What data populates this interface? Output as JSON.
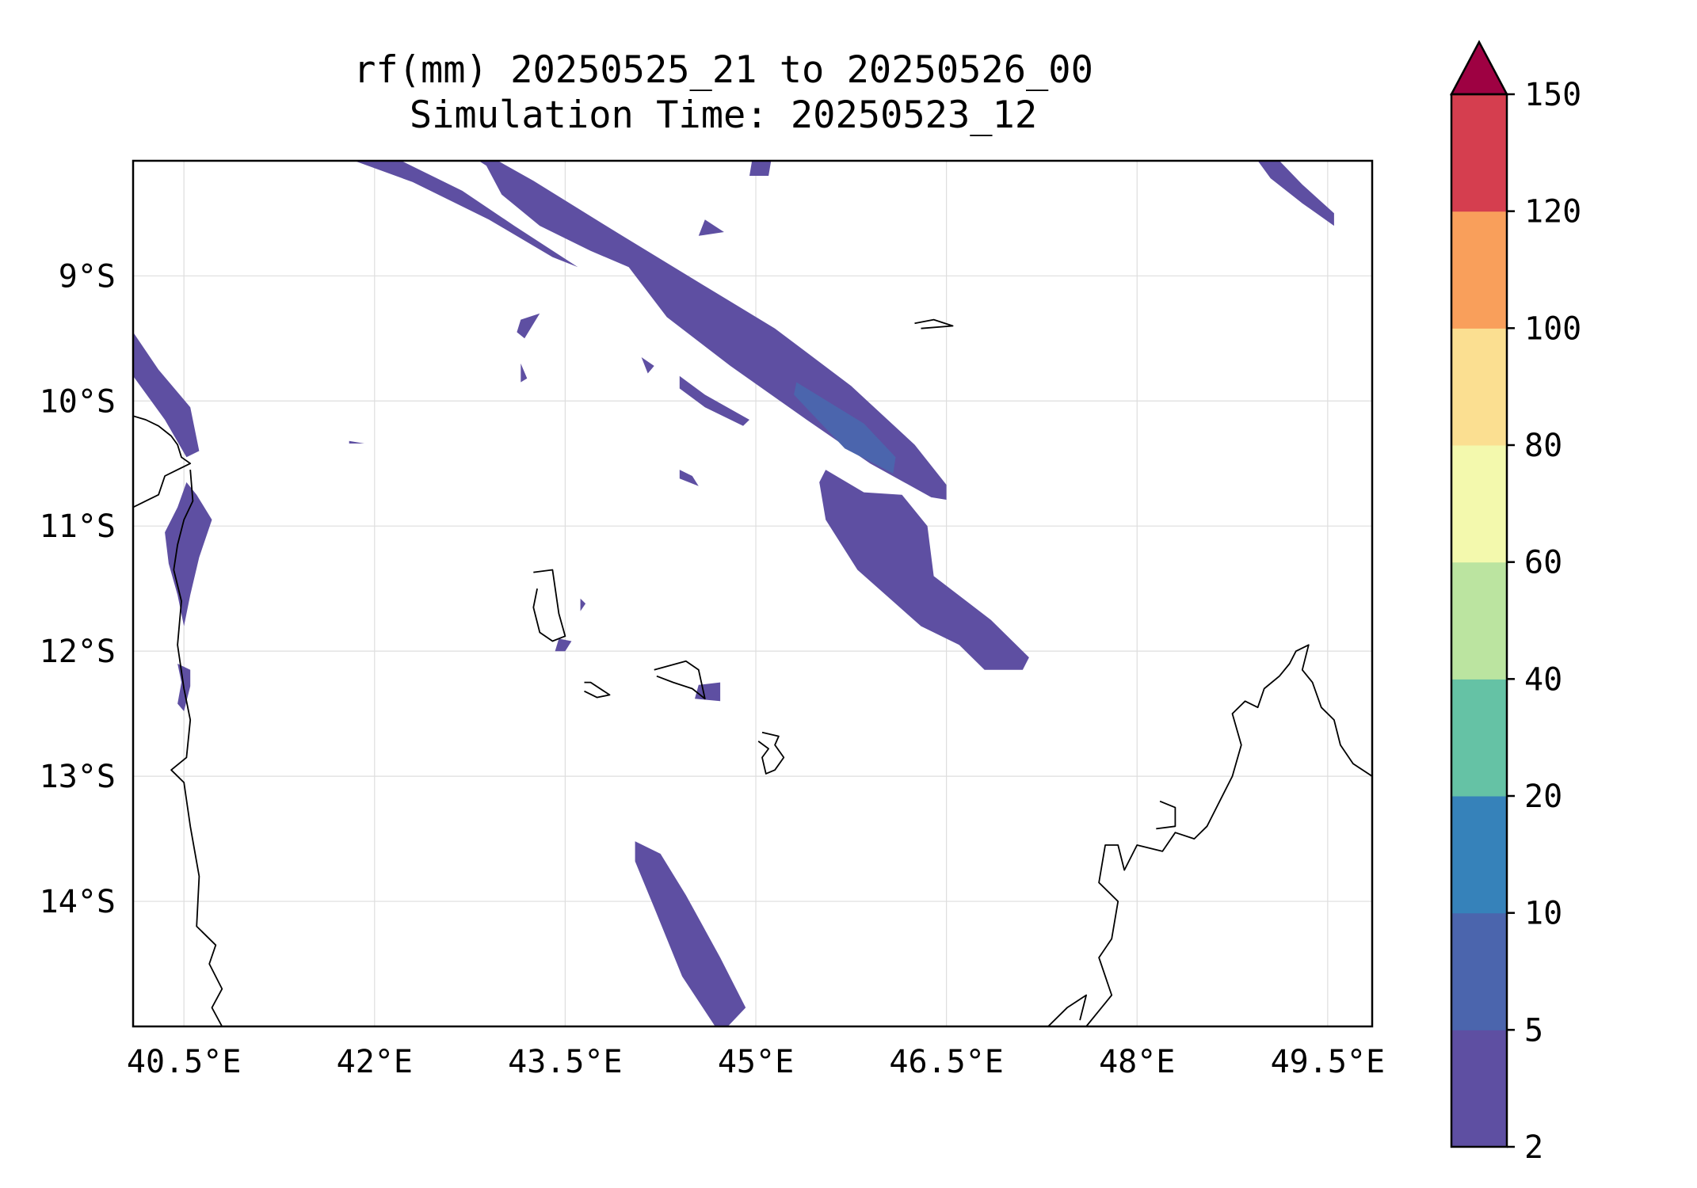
{
  "title_line1": "rf(mm) 20250525_21 to 20250526_00",
  "title_line2": "Simulation Time: 20250523_12",
  "map": {
    "lon_range": [
      40.1,
      49.85
    ],
    "lat_range": [
      -15.0,
      -8.08
    ],
    "grid": true,
    "lon_ticks": [
      40.5,
      42.0,
      43.5,
      45.0,
      46.5,
      48.0,
      49.5
    ],
    "lon_tick_labels": [
      "40.5°E",
      "42°E",
      "43.5°E",
      "45°E",
      "46.5°E",
      "48°E",
      "49.5°E"
    ],
    "lat_ticks": [
      -9,
      -10,
      -11,
      -12,
      -13,
      -14
    ],
    "lat_tick_labels": [
      "9°S",
      "10°S",
      "11°S",
      "12°S",
      "13°S",
      "14°S"
    ]
  },
  "colorbar": {
    "levels": [
      2,
      5,
      10,
      20,
      40,
      60,
      80,
      100,
      120,
      150
    ],
    "tick_labels": [
      "2",
      "5",
      "10",
      "20",
      "40",
      "60",
      "80",
      "100",
      "120",
      "150"
    ],
    "colors": [
      "#5e4fa2",
      "#4b65ad",
      "#3682ba",
      "#65c2a5",
      "#bbe4a0",
      "#f3f9ad",
      "#fbdf91",
      "#f99f5b",
      "#d53e4f"
    ],
    "extend_color": "#9e0142",
    "extend": "max"
  },
  "coastline_color": "#000000",
  "gridline_color": "#dedede",
  "rain_regions": [
    {
      "level": 0,
      "name": "nw-band",
      "pts": [
        [
          41.84,
          -8.08
        ],
        [
          42.21,
          -8.08
        ],
        [
          42.69,
          -8.32
        ],
        [
          43.1,
          -8.6
        ],
        [
          43.6,
          -8.93
        ],
        [
          43.4,
          -8.85
        ],
        [
          42.9,
          -8.55
        ],
        [
          42.3,
          -8.25
        ]
      ]
    },
    {
      "level": 0,
      "name": "main-band",
      "pts": [
        [
          42.82,
          -8.08
        ],
        [
          42.97,
          -8.08
        ],
        [
          43.25,
          -8.24
        ],
        [
          43.95,
          -8.68
        ],
        [
          44.5,
          -9.02
        ],
        [
          45.15,
          -9.42
        ],
        [
          45.75,
          -9.88
        ],
        [
          46.25,
          -10.35
        ],
        [
          46.5,
          -10.67
        ],
        [
          46.5,
          -10.79
        ],
        [
          46.38,
          -10.77
        ],
        [
          45.9,
          -10.5
        ],
        [
          45.4,
          -10.15
        ],
        [
          44.8,
          -9.72
        ],
        [
          44.3,
          -9.33
        ],
        [
          44.0,
          -8.93
        ],
        [
          43.7,
          -8.8
        ],
        [
          43.3,
          -8.6
        ],
        [
          43.0,
          -8.35
        ],
        [
          42.88,
          -8.12
        ]
      ]
    },
    {
      "level": 1,
      "name": "main-band-core",
      "pts": [
        [
          45.32,
          -9.85
        ],
        [
          45.85,
          -10.18
        ],
        [
          46.1,
          -10.45
        ],
        [
          46.08,
          -10.58
        ],
        [
          45.7,
          -10.38
        ],
        [
          45.3,
          -9.95
        ]
      ]
    },
    {
      "level": 0,
      "name": "south-band",
      "pts": [
        [
          45.55,
          -10.55
        ],
        [
          45.85,
          -10.73
        ],
        [
          46.15,
          -10.75
        ],
        [
          46.35,
          -11.0
        ],
        [
          46.4,
          -11.4
        ],
        [
          46.85,
          -11.75
        ],
        [
          47.15,
          -12.05
        ],
        [
          47.1,
          -12.15
        ],
        [
          46.8,
          -12.15
        ],
        [
          46.6,
          -11.95
        ],
        [
          46.3,
          -11.8
        ],
        [
          45.8,
          -11.35
        ],
        [
          45.55,
          -10.95
        ],
        [
          45.5,
          -10.65
        ]
      ]
    },
    {
      "level": 0,
      "name": "coast-strip-upper",
      "pts": [
        [
          40.1,
          -9.45
        ],
        [
          40.3,
          -9.75
        ],
        [
          40.55,
          -10.05
        ],
        [
          40.62,
          -10.4
        ],
        [
          40.52,
          -10.45
        ],
        [
          40.35,
          -10.15
        ],
        [
          40.1,
          -9.8
        ]
      ]
    },
    {
      "level": 0,
      "name": "coast-strip-mid",
      "pts": [
        [
          40.52,
          -10.65
        ],
        [
          40.6,
          -10.75
        ],
        [
          40.72,
          -10.95
        ],
        [
          40.62,
          -11.25
        ],
        [
          40.55,
          -11.55
        ],
        [
          40.5,
          -11.8
        ],
        [
          40.45,
          -11.55
        ],
        [
          40.38,
          -11.3
        ],
        [
          40.35,
          -11.05
        ],
        [
          40.45,
          -10.85
        ]
      ]
    },
    {
      "level": 0,
      "name": "coast-strip-low",
      "pts": [
        [
          40.45,
          -12.1
        ],
        [
          40.55,
          -12.15
        ],
        [
          40.55,
          -12.28
        ],
        [
          40.5,
          -12.48
        ],
        [
          40.45,
          -12.42
        ],
        [
          40.48,
          -12.25
        ]
      ]
    },
    {
      "level": 0,
      "name": "south-strip",
      "pts": [
        [
          44.05,
          -13.52
        ],
        [
          44.25,
          -13.62
        ],
        [
          44.45,
          -13.95
        ],
        [
          44.72,
          -14.45
        ],
        [
          44.92,
          -14.85
        ],
        [
          44.78,
          -15.0
        ],
        [
          44.68,
          -15.0
        ],
        [
          44.42,
          -14.6
        ],
        [
          44.2,
          -14.05
        ],
        [
          44.05,
          -13.68
        ]
      ]
    },
    {
      "level": 0,
      "name": "north-blob-1",
      "pts": [
        [
          44.97,
          -8.08
        ],
        [
          45.12,
          -8.08
        ],
        [
          45.1,
          -8.2
        ],
        [
          44.95,
          -8.2
        ]
      ]
    },
    {
      "level": 0,
      "name": "north-blob-2",
      "pts": [
        [
          44.6,
          -8.55
        ],
        [
          44.75,
          -8.65
        ],
        [
          44.55,
          -8.68
        ]
      ]
    },
    {
      "level": 0,
      "name": "east-streak",
      "pts": [
        [
          48.95,
          -8.08
        ],
        [
          49.12,
          -8.08
        ],
        [
          49.3,
          -8.27
        ],
        [
          49.55,
          -8.5
        ],
        [
          49.55,
          -8.6
        ],
        [
          49.3,
          -8.42
        ],
        [
          49.05,
          -8.22
        ]
      ]
    },
    {
      "level": 0,
      "name": "streak-mid",
      "pts": [
        [
          44.4,
          -9.8
        ],
        [
          44.6,
          -9.95
        ],
        [
          44.95,
          -10.15
        ],
        [
          44.9,
          -10.2
        ],
        [
          44.6,
          -10.05
        ],
        [
          44.4,
          -9.9
        ]
      ]
    },
    {
      "level": 0,
      "name": "blob-a",
      "pts": [
        [
          43.15,
          -9.35
        ],
        [
          43.3,
          -9.3
        ],
        [
          43.18,
          -9.5
        ],
        [
          43.12,
          -9.45
        ]
      ]
    },
    {
      "level": 0,
      "name": "blob-b",
      "pts": [
        [
          43.15,
          -9.7
        ],
        [
          43.2,
          -9.82
        ],
        [
          43.15,
          -9.85
        ]
      ]
    },
    {
      "level": 0,
      "name": "blob-c",
      "pts": [
        [
          44.1,
          -9.65
        ],
        [
          44.2,
          -9.72
        ],
        [
          44.15,
          -9.78
        ]
      ]
    },
    {
      "level": 0,
      "name": "blob-d",
      "pts": [
        [
          44.4,
          -10.55
        ],
        [
          44.5,
          -10.6
        ],
        [
          44.55,
          -10.68
        ],
        [
          44.4,
          -10.62
        ]
      ]
    },
    {
      "level": 0,
      "name": "blob-e",
      "pts": [
        [
          41.8,
          -10.32
        ],
        [
          41.92,
          -10.34
        ],
        [
          41.8,
          -10.34
        ]
      ]
    },
    {
      "level": 0,
      "name": "blob-f",
      "pts": [
        [
          43.45,
          -11.9
        ],
        [
          43.55,
          -11.92
        ],
        [
          43.5,
          -12.0
        ],
        [
          43.42,
          -12.0
        ]
      ]
    },
    {
      "level": 0,
      "name": "blob-g",
      "pts": [
        [
          44.55,
          -12.27
        ],
        [
          44.72,
          -12.25
        ],
        [
          44.72,
          -12.4
        ],
        [
          44.52,
          -12.38
        ]
      ]
    },
    {
      "level": 0,
      "name": "blob-h",
      "pts": [
        [
          43.62,
          -11.58
        ],
        [
          43.66,
          -11.62
        ],
        [
          43.62,
          -11.68
        ]
      ]
    }
  ],
  "coastlines": [
    {
      "name": "africa-coast-north",
      "pts": [
        [
          40.1,
          -10.12
        ],
        [
          40.2,
          -10.15
        ],
        [
          40.3,
          -10.2
        ],
        [
          40.4,
          -10.28
        ],
        [
          40.45,
          -10.35
        ],
        [
          40.48,
          -10.45
        ],
        [
          40.55,
          -10.5
        ],
        [
          40.45,
          -10.55
        ],
        [
          40.35,
          -10.6
        ],
        [
          40.3,
          -10.75
        ],
        [
          40.2,
          -10.8
        ],
        [
          40.1,
          -10.85
        ]
      ]
    },
    {
      "name": "africa-coast-south",
      "pts": [
        [
          40.55,
          -10.55
        ],
        [
          40.57,
          -10.8
        ],
        [
          40.5,
          -10.95
        ],
        [
          40.45,
          -11.15
        ],
        [
          40.42,
          -11.35
        ],
        [
          40.48,
          -11.6
        ],
        [
          40.45,
          -11.95
        ],
        [
          40.5,
          -12.3
        ],
        [
          40.55,
          -12.55
        ],
        [
          40.52,
          -12.85
        ],
        [
          40.4,
          -12.95
        ],
        [
          40.5,
          -13.05
        ],
        [
          40.55,
          -13.4
        ],
        [
          40.62,
          -13.8
        ],
        [
          40.6,
          -14.2
        ],
        [
          40.75,
          -14.35
        ],
        [
          40.7,
          -14.5
        ],
        [
          40.8,
          -14.7
        ],
        [
          40.72,
          -14.85
        ],
        [
          40.8,
          -15.0
        ]
      ]
    },
    {
      "name": "grande-comore",
      "pts": [
        [
          43.25,
          -11.37
        ],
        [
          43.4,
          -11.35
        ],
        [
          43.45,
          -11.7
        ],
        [
          43.5,
          -11.88
        ],
        [
          43.4,
          -11.92
        ],
        [
          43.3,
          -11.85
        ],
        [
          43.25,
          -11.65
        ],
        [
          43.28,
          -11.5
        ]
      ]
    },
    {
      "name": "moheli",
      "pts": [
        [
          43.65,
          -12.25
        ],
        [
          43.7,
          -12.25
        ],
        [
          43.85,
          -12.35
        ],
        [
          43.75,
          -12.37
        ],
        [
          43.65,
          -12.32
        ]
      ]
    },
    {
      "name": "anjouan",
      "pts": [
        [
          44.2,
          -12.15
        ],
        [
          44.45,
          -12.08
        ],
        [
          44.55,
          -12.15
        ],
        [
          44.6,
          -12.38
        ],
        [
          44.5,
          -12.3
        ],
        [
          44.35,
          -12.25
        ],
        [
          44.22,
          -12.2
        ]
      ]
    },
    {
      "name": "mayotte",
      "pts": [
        [
          45.05,
          -12.65
        ],
        [
          45.18,
          -12.68
        ],
        [
          45.15,
          -12.75
        ],
        [
          45.22,
          -12.85
        ],
        [
          45.15,
          -12.95
        ],
        [
          45.08,
          -12.98
        ],
        [
          45.05,
          -12.85
        ],
        [
          45.1,
          -12.78
        ],
        [
          45.02,
          -12.72
        ]
      ]
    },
    {
      "name": "glorieuses",
      "pts": [
        [
          46.25,
          -9.38
        ],
        [
          46.4,
          -9.35
        ],
        [
          46.55,
          -9.4
        ],
        [
          46.3,
          -9.42
        ]
      ]
    },
    {
      "name": "madagascar",
      "pts": [
        [
          49.85,
          -13.0
        ],
        [
          49.7,
          -12.9
        ],
        [
          49.6,
          -12.75
        ],
        [
          49.55,
          -12.55
        ],
        [
          49.45,
          -12.45
        ],
        [
          49.38,
          -12.25
        ],
        [
          49.3,
          -12.15
        ],
        [
          49.35,
          -11.95
        ],
        [
          49.25,
          -12.0
        ],
        [
          49.2,
          -12.1
        ],
        [
          49.12,
          -12.2
        ],
        [
          49.0,
          -12.3
        ],
        [
          48.95,
          -12.45
        ],
        [
          48.85,
          -12.4
        ],
        [
          48.75,
          -12.5
        ],
        [
          48.82,
          -12.75
        ],
        [
          48.75,
          -13.0
        ],
        [
          48.65,
          -13.2
        ],
        [
          48.55,
          -13.4
        ],
        [
          48.45,
          -13.5
        ],
        [
          48.3,
          -13.45
        ],
        [
          48.2,
          -13.6
        ],
        [
          48.0,
          -13.55
        ],
        [
          47.9,
          -13.75
        ],
        [
          47.85,
          -13.55
        ],
        [
          47.75,
          -13.55
        ],
        [
          47.7,
          -13.85
        ],
        [
          47.85,
          -14.0
        ],
        [
          47.8,
          -14.3
        ],
        [
          47.7,
          -14.45
        ],
        [
          47.8,
          -14.75
        ],
        [
          47.6,
          -15.0
        ]
      ]
    },
    {
      "name": "nosy-be",
      "pts": [
        [
          48.18,
          -13.2
        ],
        [
          48.3,
          -13.25
        ],
        [
          48.3,
          -13.4
        ],
        [
          48.15,
          -13.42
        ]
      ]
    },
    {
      "name": "madagascar-sw",
      "pts": [
        [
          47.3,
          -15.0
        ],
        [
          47.45,
          -14.85
        ],
        [
          47.6,
          -14.75
        ],
        [
          47.55,
          -14.95
        ]
      ]
    }
  ]
}
